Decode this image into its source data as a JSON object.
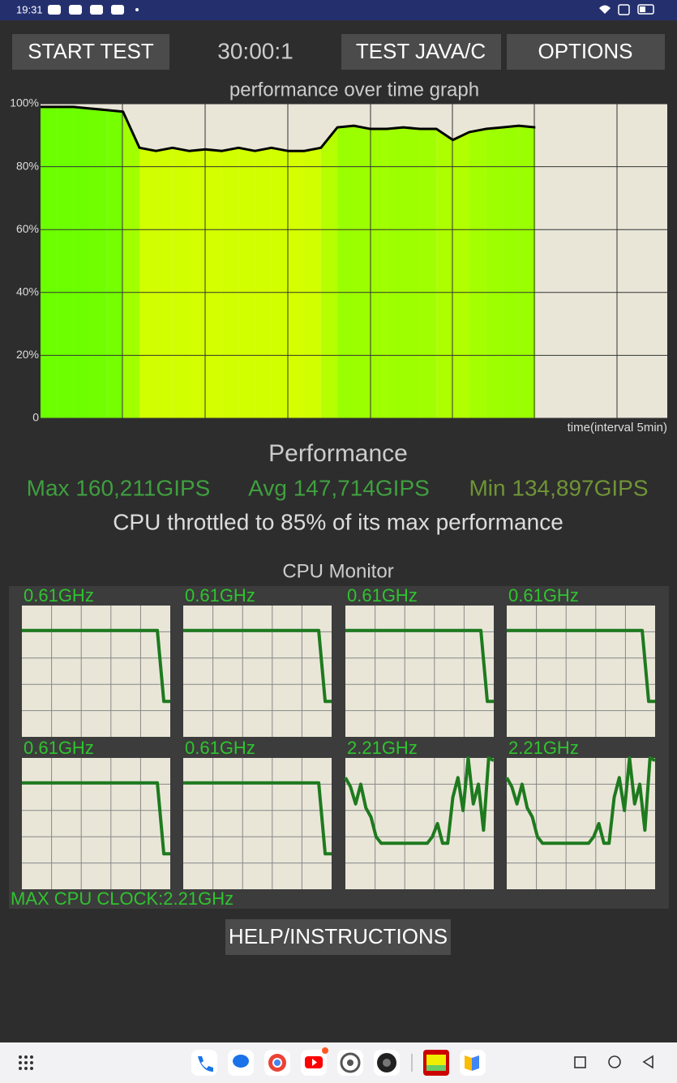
{
  "status_bar": {
    "time": "19:31"
  },
  "toolbar": {
    "start_button": "START TEST",
    "timer": "30:00:1",
    "java_button": "TEST JAVA/C",
    "options_button": "OPTIONS"
  },
  "performance_graph": {
    "title": "performance over time graph",
    "ylim": [
      0,
      100
    ],
    "yticks": [
      0,
      {
        "value": 20,
        "label": "20%"
      },
      {
        "value": 40,
        "label": "40%"
      },
      {
        "value": 60,
        "label": "60%"
      },
      {
        "value": 80,
        "label": "80%"
      },
      {
        "value": 100,
        "label": "100%"
      }
    ],
    "xlim": [
      0,
      38
    ],
    "xlabel": "time(interval 5min)",
    "x": [
      0,
      1,
      2,
      3,
      4,
      5,
      6,
      7,
      8,
      9,
      10,
      11,
      12,
      13,
      14,
      15,
      16,
      17,
      18,
      19,
      20,
      21,
      22,
      23,
      24,
      25,
      26,
      27,
      28,
      29,
      30
    ],
    "values": [
      99,
      99,
      99,
      98.5,
      98,
      97.5,
      86,
      85,
      86,
      85,
      85.5,
      85,
      86,
      85,
      86,
      85,
      85,
      86,
      92.5,
      93,
      92,
      92,
      92.5,
      92,
      92,
      88.5,
      91,
      92,
      92.5,
      93,
      92.5
    ]
  },
  "performance": {
    "heading": "Performance",
    "max": "Max 160,211GIPS",
    "avg": "Avg 147,714GIPS",
    "min": "Min 134,897GIPS",
    "summary": "CPU throttled to 85% of its max performance"
  },
  "cpu_monitor": {
    "title": "CPU Monitor",
    "ylim": [
      0,
      100
    ],
    "cores": [
      {
        "label": "0.61GHz",
        "values": [
          81,
          81,
          81,
          81,
          81,
          81,
          81,
          81,
          81,
          81,
          81,
          81,
          81,
          81,
          81,
          81,
          81,
          81,
          81,
          81,
          81,
          81,
          27,
          27
        ]
      },
      {
        "label": "0.61GHz",
        "values": [
          81,
          81,
          81,
          81,
          81,
          81,
          81,
          81,
          81,
          81,
          81,
          81,
          81,
          81,
          81,
          81,
          81,
          81,
          81,
          81,
          81,
          81,
          27,
          27
        ]
      },
      {
        "label": "0.61GHz",
        "values": [
          81,
          81,
          81,
          81,
          81,
          81,
          81,
          81,
          81,
          81,
          81,
          81,
          81,
          81,
          81,
          81,
          81,
          81,
          81,
          81,
          81,
          81,
          27,
          27
        ]
      },
      {
        "label": "0.61GHz",
        "values": [
          81,
          81,
          81,
          81,
          81,
          81,
          81,
          81,
          81,
          81,
          81,
          81,
          81,
          81,
          81,
          81,
          81,
          81,
          81,
          81,
          81,
          81,
          27,
          27
        ]
      },
      {
        "label": "0.61GHz",
        "values": [
          81,
          81,
          81,
          81,
          81,
          81,
          81,
          81,
          81,
          81,
          81,
          81,
          81,
          81,
          81,
          81,
          81,
          81,
          81,
          81,
          81,
          81,
          27,
          27
        ]
      },
      {
        "label": "0.61GHz",
        "values": [
          81,
          81,
          81,
          81,
          81,
          81,
          81,
          81,
          81,
          81,
          81,
          81,
          81,
          81,
          81,
          81,
          81,
          81,
          81,
          81,
          81,
          81,
          27,
          27
        ]
      },
      {
        "label": "2.21GHz",
        "values": [
          85,
          78,
          65,
          80,
          62,
          55,
          40,
          35,
          35,
          35,
          35,
          35,
          35,
          35,
          35,
          35,
          35,
          40,
          50,
          35,
          35,
          70,
          85,
          60,
          100,
          65,
          80,
          45,
          100,
          98
        ]
      },
      {
        "label": "2.21GHz",
        "values": [
          85,
          78,
          65,
          80,
          62,
          55,
          40,
          35,
          35,
          35,
          35,
          35,
          35,
          35,
          35,
          35,
          35,
          40,
          50,
          35,
          35,
          70,
          85,
          60,
          100,
          65,
          80,
          45,
          100,
          98
        ]
      }
    ],
    "max_clock": "MAX CPU CLOCK:2.21GHz"
  },
  "help_button": "HELP/INSTRUCTIONS"
}
